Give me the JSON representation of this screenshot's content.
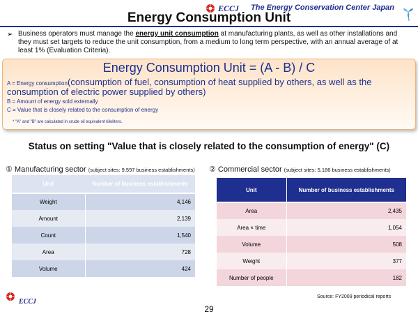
{
  "header": {
    "brand": "ECCJ",
    "org_name": "The Energy Conservation Center Japan",
    "title": "Energy Consumption Unit"
  },
  "intro": {
    "text_before": "Business operators must manage the ",
    "emphasis": "energy unit consumption",
    "text_after": " at manufacturing plants, as well as other installations and they must set targets to reduce the unit consumption, from a medium to long term perspective, with an annual average of at least 1% (Evaluation Criteria)."
  },
  "formula": {
    "title": "Energy Consumption Unit = (A - B) / C",
    "a_label": "A = Energy consumption",
    "a_detail": "(consumption of fuel, consumption of heat supplied by others, as well as the consumption of electric power supplied by others)",
    "b_label": "B = Amount of energy sold externally",
    "c_label": "C = Value that is closely related to the consumption of energy",
    "note": "* \"A\" and \"B\" are calculated in crude oil equivalent kiloliters."
  },
  "status_heading": "Status on setting \"Value that is closely related to the consumption of energy\" (C)",
  "manufacturing": {
    "heading": "① Manufacturing sector",
    "subtitle": "(subject sites: 9,597 business establishments)",
    "col_unit": "Unit",
    "col_count": "Number of business establishments",
    "rows": [
      {
        "unit": "Weight",
        "count": "4,146"
      },
      {
        "unit": "Amount",
        "count": "2,139"
      },
      {
        "unit": "Count",
        "count": "1,540"
      },
      {
        "unit": "Area",
        "count": "728"
      },
      {
        "unit": "Volume",
        "count": "424"
      }
    ]
  },
  "commercial": {
    "heading": "② Commercial sector",
    "subtitle": "(subject sites: 5,186 business establishments)",
    "col_unit": "Unit",
    "col_count": "Number of business establishments",
    "rows": [
      {
        "unit": "Area",
        "count": "2,435"
      },
      {
        "unit": "Area × time",
        "count": "1,054"
      },
      {
        "unit": "Volume",
        "count": "508"
      },
      {
        "unit": "Weight",
        "count": "377"
      },
      {
        "unit": "Number of people",
        "count": "182"
      }
    ]
  },
  "footer": {
    "source": "Source: FY2009 periodical reports",
    "brand": "ECCJ",
    "page_number": "29"
  },
  "colors": {
    "brand_blue": "#1f2f8f",
    "logo_red": "#d7261e",
    "formula_box_fill": "#fde3c8",
    "commercial_header": "#1f2f8f",
    "manufacturing_header": "#dce4f1"
  },
  "icons": {
    "logo": "eccj-sun-logo-icon",
    "emblem": "clover-emblem-icon"
  }
}
